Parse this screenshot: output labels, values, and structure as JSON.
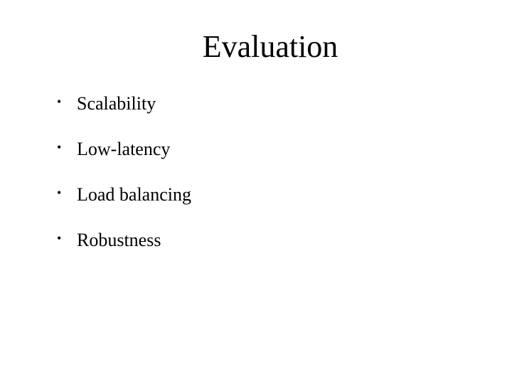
{
  "slide": {
    "title": "Evaluation",
    "bullets": [
      "Scalability",
      "Low-latency",
      "Load balancing",
      "Robustness"
    ],
    "colors": {
      "background": "#ffffff",
      "text": "#000000"
    },
    "typography": {
      "font_family": "Comic Sans MS",
      "title_fontsize": 44,
      "bullet_fontsize": 26
    }
  }
}
